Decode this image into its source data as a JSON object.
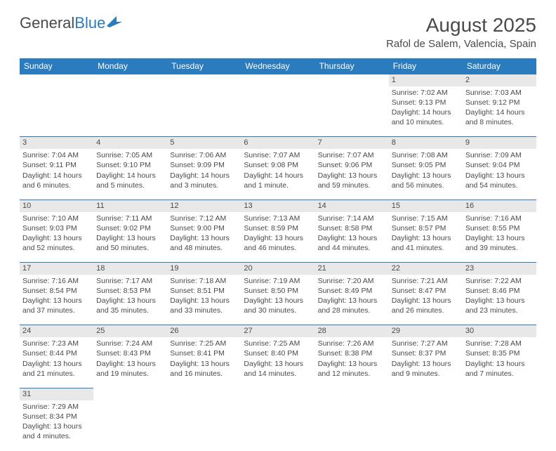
{
  "logo": {
    "text1": "General",
    "text2": "Blue"
  },
  "header": {
    "month": "August 2025",
    "location": "Rafol de Salem, Valencia, Spain"
  },
  "colors": {
    "brand": "#2b7bbf",
    "text": "#4a4a4a",
    "daynum_bg": "#e8e8e8",
    "bg": "#ffffff"
  },
  "weekdays": [
    "Sunday",
    "Monday",
    "Tuesday",
    "Wednesday",
    "Thursday",
    "Friday",
    "Saturday"
  ],
  "weeks": [
    [
      null,
      null,
      null,
      null,
      null,
      {
        "n": "1",
        "sr": "Sunrise: 7:02 AM",
        "ss": "Sunset: 9:13 PM",
        "dl": "Daylight: 14 hours and 10 minutes."
      },
      {
        "n": "2",
        "sr": "Sunrise: 7:03 AM",
        "ss": "Sunset: 9:12 PM",
        "dl": "Daylight: 14 hours and 8 minutes."
      }
    ],
    [
      {
        "n": "3",
        "sr": "Sunrise: 7:04 AM",
        "ss": "Sunset: 9:11 PM",
        "dl": "Daylight: 14 hours and 6 minutes."
      },
      {
        "n": "4",
        "sr": "Sunrise: 7:05 AM",
        "ss": "Sunset: 9:10 PM",
        "dl": "Daylight: 14 hours and 5 minutes."
      },
      {
        "n": "5",
        "sr": "Sunrise: 7:06 AM",
        "ss": "Sunset: 9:09 PM",
        "dl": "Daylight: 14 hours and 3 minutes."
      },
      {
        "n": "6",
        "sr": "Sunrise: 7:07 AM",
        "ss": "Sunset: 9:08 PM",
        "dl": "Daylight: 14 hours and 1 minute."
      },
      {
        "n": "7",
        "sr": "Sunrise: 7:07 AM",
        "ss": "Sunset: 9:06 PM",
        "dl": "Daylight: 13 hours and 59 minutes."
      },
      {
        "n": "8",
        "sr": "Sunrise: 7:08 AM",
        "ss": "Sunset: 9:05 PM",
        "dl": "Daylight: 13 hours and 56 minutes."
      },
      {
        "n": "9",
        "sr": "Sunrise: 7:09 AM",
        "ss": "Sunset: 9:04 PM",
        "dl": "Daylight: 13 hours and 54 minutes."
      }
    ],
    [
      {
        "n": "10",
        "sr": "Sunrise: 7:10 AM",
        "ss": "Sunset: 9:03 PM",
        "dl": "Daylight: 13 hours and 52 minutes."
      },
      {
        "n": "11",
        "sr": "Sunrise: 7:11 AM",
        "ss": "Sunset: 9:02 PM",
        "dl": "Daylight: 13 hours and 50 minutes."
      },
      {
        "n": "12",
        "sr": "Sunrise: 7:12 AM",
        "ss": "Sunset: 9:00 PM",
        "dl": "Daylight: 13 hours and 48 minutes."
      },
      {
        "n": "13",
        "sr": "Sunrise: 7:13 AM",
        "ss": "Sunset: 8:59 PM",
        "dl": "Daylight: 13 hours and 46 minutes."
      },
      {
        "n": "14",
        "sr": "Sunrise: 7:14 AM",
        "ss": "Sunset: 8:58 PM",
        "dl": "Daylight: 13 hours and 44 minutes."
      },
      {
        "n": "15",
        "sr": "Sunrise: 7:15 AM",
        "ss": "Sunset: 8:57 PM",
        "dl": "Daylight: 13 hours and 41 minutes."
      },
      {
        "n": "16",
        "sr": "Sunrise: 7:16 AM",
        "ss": "Sunset: 8:55 PM",
        "dl": "Daylight: 13 hours and 39 minutes."
      }
    ],
    [
      {
        "n": "17",
        "sr": "Sunrise: 7:16 AM",
        "ss": "Sunset: 8:54 PM",
        "dl": "Daylight: 13 hours and 37 minutes."
      },
      {
        "n": "18",
        "sr": "Sunrise: 7:17 AM",
        "ss": "Sunset: 8:53 PM",
        "dl": "Daylight: 13 hours and 35 minutes."
      },
      {
        "n": "19",
        "sr": "Sunrise: 7:18 AM",
        "ss": "Sunset: 8:51 PM",
        "dl": "Daylight: 13 hours and 33 minutes."
      },
      {
        "n": "20",
        "sr": "Sunrise: 7:19 AM",
        "ss": "Sunset: 8:50 PM",
        "dl": "Daylight: 13 hours and 30 minutes."
      },
      {
        "n": "21",
        "sr": "Sunrise: 7:20 AM",
        "ss": "Sunset: 8:49 PM",
        "dl": "Daylight: 13 hours and 28 minutes."
      },
      {
        "n": "22",
        "sr": "Sunrise: 7:21 AM",
        "ss": "Sunset: 8:47 PM",
        "dl": "Daylight: 13 hours and 26 minutes."
      },
      {
        "n": "23",
        "sr": "Sunrise: 7:22 AM",
        "ss": "Sunset: 8:46 PM",
        "dl": "Daylight: 13 hours and 23 minutes."
      }
    ],
    [
      {
        "n": "24",
        "sr": "Sunrise: 7:23 AM",
        "ss": "Sunset: 8:44 PM",
        "dl": "Daylight: 13 hours and 21 minutes."
      },
      {
        "n": "25",
        "sr": "Sunrise: 7:24 AM",
        "ss": "Sunset: 8:43 PM",
        "dl": "Daylight: 13 hours and 19 minutes."
      },
      {
        "n": "26",
        "sr": "Sunrise: 7:25 AM",
        "ss": "Sunset: 8:41 PM",
        "dl": "Daylight: 13 hours and 16 minutes."
      },
      {
        "n": "27",
        "sr": "Sunrise: 7:25 AM",
        "ss": "Sunset: 8:40 PM",
        "dl": "Daylight: 13 hours and 14 minutes."
      },
      {
        "n": "28",
        "sr": "Sunrise: 7:26 AM",
        "ss": "Sunset: 8:38 PM",
        "dl": "Daylight: 13 hours and 12 minutes."
      },
      {
        "n": "29",
        "sr": "Sunrise: 7:27 AM",
        "ss": "Sunset: 8:37 PM",
        "dl": "Daylight: 13 hours and 9 minutes."
      },
      {
        "n": "30",
        "sr": "Sunrise: 7:28 AM",
        "ss": "Sunset: 8:35 PM",
        "dl": "Daylight: 13 hours and 7 minutes."
      }
    ],
    [
      {
        "n": "31",
        "sr": "Sunrise: 7:29 AM",
        "ss": "Sunset: 8:34 PM",
        "dl": "Daylight: 13 hours and 4 minutes."
      },
      null,
      null,
      null,
      null,
      null,
      null
    ]
  ]
}
